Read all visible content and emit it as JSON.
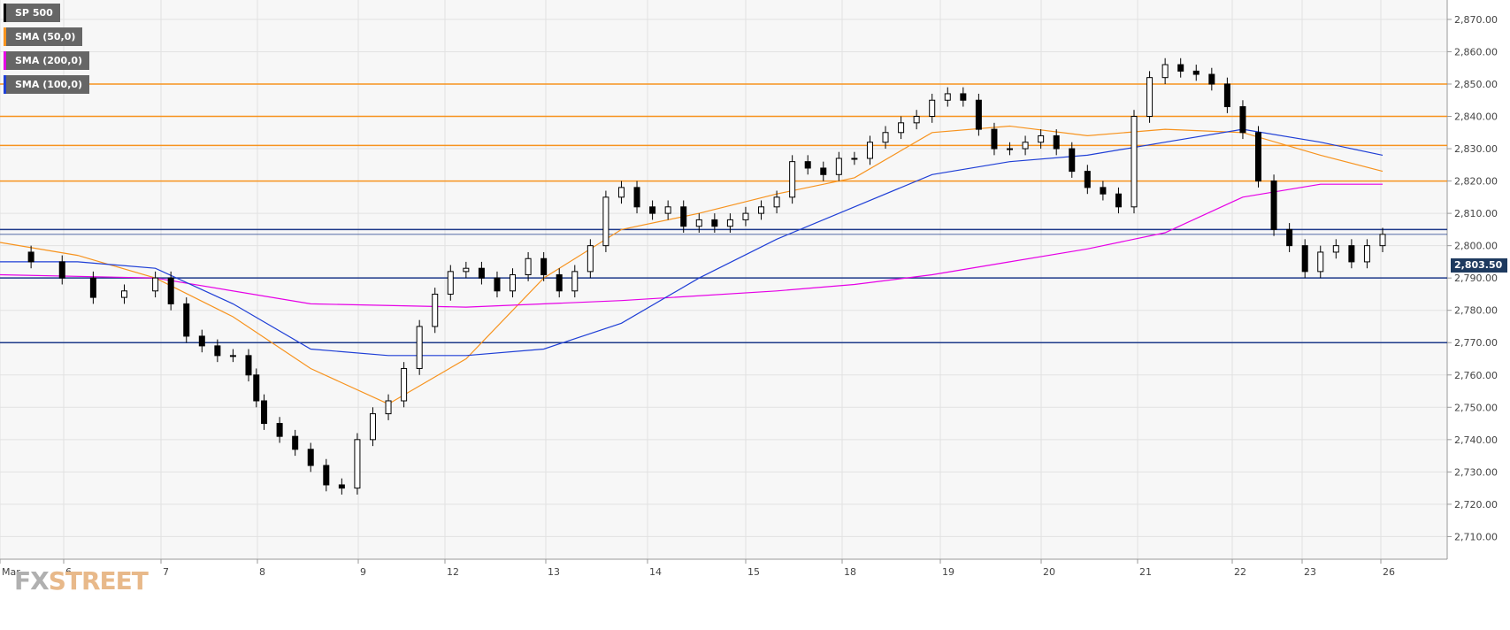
{
  "legend": [
    {
      "label": "SP 500",
      "color": "#000000"
    },
    {
      "label": "SMA (50,0)",
      "color": "#f7931e"
    },
    {
      "label": "SMA (200,0)",
      "color": "#e600e6"
    },
    {
      "label": "SMA (100,0)",
      "color": "#1f3fd6"
    }
  ],
  "price_tag": "2,803.50",
  "logo": {
    "fx": "FX",
    "street": "STREET"
  },
  "chart_data": {
    "type": "candlestick",
    "title": "",
    "x_tick_labels": [
      "Mar",
      "6",
      "7",
      "8",
      "9",
      "12",
      "13",
      "14",
      "15",
      "18",
      "19",
      "20",
      "21",
      "22",
      "23",
      "26"
    ],
    "y_tick_labels": [
      "2,710.00",
      "2,720.00",
      "2,730.00",
      "2,740.00",
      "2,750.00",
      "2,760.00",
      "2,770.00",
      "2,780.00",
      "2,790.00",
      "2,800.00",
      "2,810.00",
      "2,820.00",
      "2,830.00",
      "2,840.00",
      "2,850.00",
      "2,860.00",
      "2,870.00"
    ],
    "ylim": [
      2703,
      2876
    ],
    "grid": true,
    "last_price": 2803.5,
    "horizontal_levels": [
      {
        "value": 2850,
        "color": "#f7931e",
        "kind": "resistance"
      },
      {
        "value": 2840,
        "color": "#f7931e",
        "kind": "resistance"
      },
      {
        "value": 2831,
        "color": "#f7931e",
        "kind": "resistance"
      },
      {
        "value": 2820,
        "color": "#f7931e",
        "kind": "resistance"
      },
      {
        "value": 2805,
        "color": "#1e3a8a",
        "kind": "support"
      },
      {
        "value": 2790,
        "color": "#1e3a8a",
        "kind": "support"
      },
      {
        "value": 2770,
        "color": "#1e3a8a",
        "kind": "support"
      }
    ],
    "series": [
      {
        "name": "SP 500",
        "type": "close",
        "points": [
          [
            0,
            2798
          ],
          [
            2,
            2795
          ],
          [
            4,
            2790
          ],
          [
            6,
            2784
          ],
          [
            8,
            2786
          ],
          [
            10,
            2790
          ],
          [
            11,
            2782
          ],
          [
            12,
            2772
          ],
          [
            13,
            2769
          ],
          [
            14,
            2766
          ],
          [
            15,
            2766
          ],
          [
            16,
            2760
          ],
          [
            16.5,
            2752
          ],
          [
            17,
            2745
          ],
          [
            18,
            2741
          ],
          [
            19,
            2737
          ],
          [
            20,
            2732
          ],
          [
            21,
            2726
          ],
          [
            22,
            2725
          ],
          [
            23,
            2740
          ],
          [
            24,
            2748
          ],
          [
            25,
            2752
          ],
          [
            26,
            2762
          ],
          [
            27,
            2775
          ],
          [
            28,
            2785
          ],
          [
            29,
            2792
          ],
          [
            30,
            2793
          ],
          [
            31,
            2790
          ],
          [
            32,
            2786
          ],
          [
            33,
            2791
          ],
          [
            34,
            2796
          ],
          [
            35,
            2791
          ],
          [
            36,
            2786
          ],
          [
            37,
            2792
          ],
          [
            38,
            2800
          ],
          [
            39,
            2815
          ],
          [
            40,
            2818
          ],
          [
            41,
            2812
          ],
          [
            42,
            2810
          ],
          [
            43,
            2812
          ],
          [
            44,
            2806
          ],
          [
            45,
            2808
          ],
          [
            46,
            2806
          ],
          [
            47,
            2808
          ],
          [
            48,
            2810
          ],
          [
            49,
            2812
          ],
          [
            50,
            2815
          ],
          [
            51,
            2826
          ],
          [
            52,
            2824
          ],
          [
            53,
            2822
          ],
          [
            54,
            2827
          ],
          [
            55,
            2827
          ],
          [
            56,
            2832
          ],
          [
            57,
            2835
          ],
          [
            58,
            2838
          ],
          [
            59,
            2840
          ],
          [
            60,
            2845
          ],
          [
            61,
            2847
          ],
          [
            62,
            2845
          ],
          [
            63,
            2836
          ],
          [
            64,
            2830
          ],
          [
            65,
            2830
          ],
          [
            66,
            2832
          ],
          [
            67,
            2834
          ],
          [
            68,
            2830
          ],
          [
            69,
            2823
          ],
          [
            70,
            2818
          ],
          [
            71,
            2816
          ],
          [
            72,
            2812
          ],
          [
            73,
            2840
          ],
          [
            74,
            2852
          ],
          [
            75,
            2856
          ],
          [
            76,
            2854
          ],
          [
            77,
            2853
          ],
          [
            78,
            2850
          ],
          [
            79,
            2843
          ],
          [
            80,
            2835
          ],
          [
            81,
            2820
          ],
          [
            82,
            2805
          ],
          [
            83,
            2800
          ],
          [
            84,
            2792
          ],
          [
            85,
            2798
          ],
          [
            86,
            2800
          ],
          [
            87,
            2795
          ],
          [
            88,
            2800
          ],
          [
            89,
            2803.5
          ]
        ]
      },
      {
        "name": "SMA (50,0)",
        "points": [
          [
            0,
            2801
          ],
          [
            5,
            2797
          ],
          [
            10,
            2790
          ],
          [
            15,
            2778
          ],
          [
            20,
            2762
          ],
          [
            25,
            2751
          ],
          [
            30,
            2765
          ],
          [
            35,
            2790
          ],
          [
            40,
            2805
          ],
          [
            45,
            2810
          ],
          [
            50,
            2816
          ],
          [
            55,
            2821
          ],
          [
            60,
            2835
          ],
          [
            65,
            2837
          ],
          [
            70,
            2834
          ],
          [
            75,
            2836
          ],
          [
            80,
            2835
          ],
          [
            85,
            2828
          ],
          [
            89,
            2823
          ]
        ]
      },
      {
        "name": "SMA (200,0)",
        "points": [
          [
            0,
            2791
          ],
          [
            10,
            2790
          ],
          [
            20,
            2782
          ],
          [
            30,
            2781
          ],
          [
            40,
            2783
          ],
          [
            50,
            2786
          ],
          [
            55,
            2788
          ],
          [
            60,
            2791
          ],
          [
            65,
            2795
          ],
          [
            70,
            2799
          ],
          [
            75,
            2804
          ],
          [
            80,
            2815
          ],
          [
            85,
            2819
          ],
          [
            89,
            2819
          ]
        ]
      },
      {
        "name": "SMA (100,0)",
        "points": [
          [
            0,
            2795
          ],
          [
            5,
            2795
          ],
          [
            10,
            2793
          ],
          [
            15,
            2782
          ],
          [
            20,
            2768
          ],
          [
            25,
            2766
          ],
          [
            30,
            2766
          ],
          [
            35,
            2768
          ],
          [
            40,
            2776
          ],
          [
            45,
            2790
          ],
          [
            50,
            2802
          ],
          [
            55,
            2812
          ],
          [
            60,
            2822
          ],
          [
            65,
            2826
          ],
          [
            70,
            2828
          ],
          [
            75,
            2832
          ],
          [
            80,
            2836
          ],
          [
            85,
            2832
          ],
          [
            89,
            2828
          ]
        ]
      }
    ]
  }
}
